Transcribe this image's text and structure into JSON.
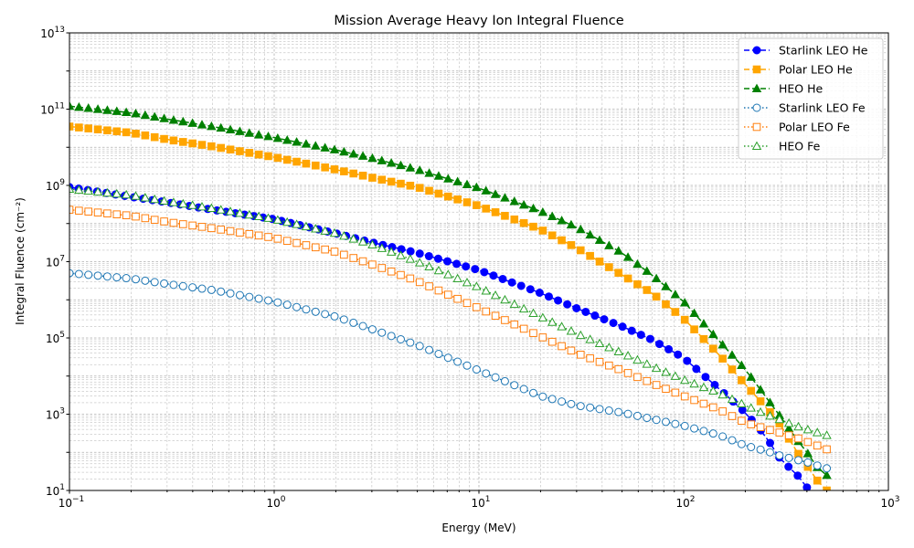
{
  "chart_data": {
    "type": "line",
    "title": "Mission Average Heavy Ion Integral Fluence",
    "xlabel": "Energy (MeV)",
    "ylabel": "Integral Fluence (cm⁻²)",
    "xscale": "log",
    "yscale": "log",
    "xlim": [
      0.1,
      1000
    ],
    "ylim": [
      10,
      10000000000000
    ],
    "grid": "both (major and minor), dashed",
    "legend_position": "upper-right",
    "x_ticks": [
      {
        "base": "10",
        "exp": "−1"
      },
      {
        "base": "10",
        "exp": "0"
      },
      {
        "base": "10",
        "exp": "1"
      },
      {
        "base": "10",
        "exp": "2"
      },
      {
        "base": "10",
        "exp": "3"
      }
    ],
    "y_ticks": [
      {
        "base": "10",
        "exp": "1"
      },
      {
        "base": "10",
        "exp": "3"
      },
      {
        "base": "10",
        "exp": "5"
      },
      {
        "base": "10",
        "exp": "7"
      },
      {
        "base": "10",
        "exp": "9"
      },
      {
        "base": "10",
        "exp": "11"
      },
      {
        "base": "10",
        "exp": "13"
      }
    ],
    "series": [
      {
        "name": "Starlink LEO He",
        "color": "#0000ff",
        "marker": "circle",
        "fill": "solid",
        "line": "dashed",
        "x": [
          0.1,
          0.2,
          0.3,
          0.5,
          1,
          2,
          3,
          5,
          10,
          20,
          30,
          50,
          70,
          100,
          150,
          200,
          250,
          300,
          350,
          400
        ],
        "y": [
          900000000.0,
          500000000.0,
          360000000.0,
          230000000.0,
          130000000.0,
          55000000.0,
          32000000.0,
          17000000.0,
          6000000.0,
          1500000.0,
          600000.0,
          200000.0,
          90000.0,
          30000.0,
          4500.0,
          1100.0,
          280,
          60,
          30,
          12
        ]
      },
      {
        "name": "Polar LEO He",
        "color": "#ffa500",
        "marker": "square",
        "fill": "solid",
        "line": "dashed",
        "x": [
          0.1,
          0.2,
          0.3,
          0.5,
          1,
          2,
          3,
          5,
          10,
          20,
          30,
          50,
          70,
          100,
          150,
          200,
          250,
          300,
          350,
          400,
          450,
          500
        ],
        "y": [
          35000000000.0,
          24000000000.0,
          16000000000.0,
          10500000000.0,
          5500000000.0,
          2600000000.0,
          1600000000.0,
          900000000.0,
          290000000.0,
          70000000.0,
          23000000.0,
          4500000.0,
          1500000.0,
          320000.0,
          35000.0,
          6000.0,
          1600.0,
          500,
          120,
          45,
          18,
          10
        ]
      },
      {
        "name": "HEO He",
        "color": "#008000",
        "marker": "triangle",
        "fill": "solid",
        "line": "dashed",
        "x": [
          0.1,
          0.2,
          0.3,
          0.5,
          1,
          2,
          3,
          5,
          10,
          20,
          30,
          50,
          70,
          100,
          150,
          200,
          250,
          300,
          350,
          400,
          450,
          500
        ],
        "y": [
          120000000000.0,
          80000000000.0,
          55000000000.0,
          35000000000.0,
          18000000000.0,
          8500000000.0,
          5200000000.0,
          2600000000.0,
          850000000.0,
          210000000.0,
          80000000.0,
          17000000.0,
          4500000.0,
          900000.0,
          80000.0,
          15000.0,
          3000.0,
          800,
          250,
          100,
          40,
          25
        ]
      },
      {
        "name": "Starlink LEO Fe",
        "color": "#1f77b4",
        "marker": "circle",
        "fill": "open",
        "line": "dotted",
        "x": [
          0.1,
          0.2,
          0.3,
          0.5,
          1,
          2,
          3,
          5,
          10,
          20,
          30,
          50,
          70,
          100,
          150,
          200,
          250,
          300,
          350,
          400,
          450,
          500
        ],
        "y": [
          5000000.0,
          3600000.0,
          2600000.0,
          1800000.0,
          900000.0,
          360000.0,
          170000.0,
          65000.0,
          14000.0,
          3000.0,
          1700.0,
          1100.0,
          750,
          500,
          280,
          150,
          110,
          80,
          65,
          55,
          45,
          38
        ]
      },
      {
        "name": "Polar LEO Fe",
        "color": "#ff7f0e",
        "marker": "square",
        "fill": "open",
        "line": "dotted",
        "x": [
          0.1,
          0.2,
          0.3,
          0.5,
          1,
          2,
          3,
          5,
          10,
          20,
          30,
          50,
          70,
          100,
          150,
          200,
          250,
          300,
          350,
          400,
          450,
          500
        ],
        "y": [
          230000000.0,
          160000000.0,
          110000000.0,
          75000000.0,
          42000000.0,
          18000000.0,
          8500000.0,
          3100000.0,
          600000.0,
          110000.0,
          40000.0,
          14000.0,
          6500.0,
          3000.0,
          1300.0,
          600,
          420,
          320,
          250,
          190,
          150,
          120
        ]
      },
      {
        "name": "HEO Fe",
        "color": "#2ca02c",
        "marker": "triangle",
        "fill": "open",
        "line": "dotted",
        "x": [
          0.1,
          0.2,
          0.3,
          0.5,
          1,
          2,
          3,
          5,
          10,
          20,
          30,
          50,
          70,
          100,
          150,
          200,
          250,
          300,
          350,
          400,
          450,
          500
        ],
        "y": [
          800000000.0,
          550000000.0,
          380000000.0,
          250000000.0,
          130000000.0,
          55000000.0,
          28000000.0,
          10000000.0,
          2100000.0,
          360000.0,
          130000.0,
          40000.0,
          18000.0,
          8000.0,
          3500.0,
          1700.0,
          1000.0,
          700,
          500,
          400,
          330,
          280
        ]
      }
    ]
  }
}
